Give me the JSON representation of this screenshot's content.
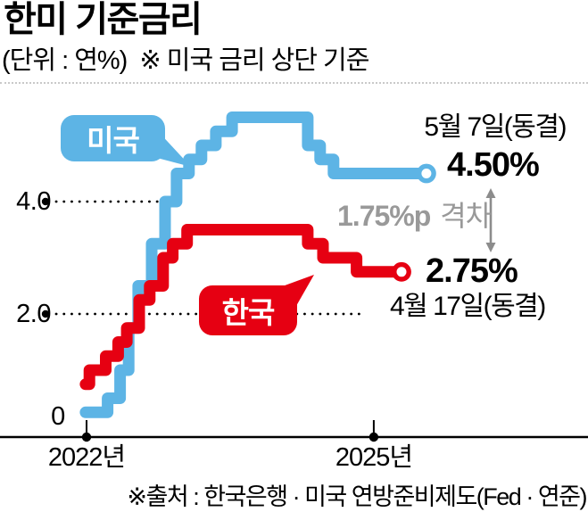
{
  "header": {
    "title": "한미 기준금리",
    "subtitle": "(단위 : 연%)  ※ 미국 금리 상단 기준"
  },
  "source": {
    "text": "※출처 : 한국은행 · 미국 연방준비제도(Fed · 연준)"
  },
  "chart_data": {
    "type": "line",
    "step": true,
    "title": "한미 기준금리",
    "unit": "연%",
    "note": "미국 금리 상단 기준",
    "x_domain": [
      2021.99,
      2025.6
    ],
    "y_domain": [
      0,
      5.5
    ],
    "grid": "dotted-leaders",
    "x_ticks": [
      {
        "label": "2022년",
        "year": 2022
      },
      {
        "label": "2025년",
        "year": 2025
      }
    ],
    "y_ticks": [
      {
        "label": "4.0",
        "value": 4.0
      },
      {
        "label": "2.0",
        "value": 2.0
      },
      {
        "label": "0",
        "value": 0
      }
    ],
    "series": [
      {
        "id": "us",
        "name": "미국",
        "color": "#5db4e5",
        "current_rate": 4.5,
        "annotation": {
          "date": "5월 7일(동결)",
          "rate": "4.50%"
        },
        "points": [
          [
            2021.99,
            0.25
          ],
          [
            2022.22,
            0.5
          ],
          [
            2022.35,
            1.0
          ],
          [
            2022.44,
            1.75
          ],
          [
            2022.54,
            2.5
          ],
          [
            2022.68,
            3.25
          ],
          [
            2022.82,
            4.0
          ],
          [
            2022.94,
            4.5
          ],
          [
            2023.07,
            4.75
          ],
          [
            2023.2,
            5.0
          ],
          [
            2023.35,
            5.25
          ],
          [
            2023.52,
            5.5
          ],
          [
            2024.31,
            5.0
          ],
          [
            2024.44,
            4.75
          ],
          [
            2024.58,
            4.5
          ],
          [
            2025.55,
            4.5
          ]
        ]
      },
      {
        "id": "kr",
        "name": "한국",
        "color": "#e60012",
        "current_rate": 2.75,
        "annotation": {
          "date": "4월 17일(동결)",
          "rate": "2.75%"
        },
        "points": [
          [
            2021.99,
            0.75
          ],
          [
            2022.03,
            1.0
          ],
          [
            2022.2,
            1.25
          ],
          [
            2022.33,
            1.5
          ],
          [
            2022.42,
            1.75
          ],
          [
            2022.55,
            2.25
          ],
          [
            2022.66,
            2.5
          ],
          [
            2022.8,
            3.0
          ],
          [
            2022.9,
            3.25
          ],
          [
            2023.05,
            3.5
          ],
          [
            2024.31,
            3.25
          ],
          [
            2024.47,
            3.0
          ],
          [
            2024.82,
            2.75
          ],
          [
            2025.29,
            2.75
          ]
        ]
      }
    ],
    "gap": {
      "value": "1.75%p",
      "label": "격차"
    },
    "colors": {
      "axis": "#000000",
      "arrow": "#8c8c8c",
      "gap_text": "#999999",
      "separator": "#c9c9c9"
    }
  }
}
